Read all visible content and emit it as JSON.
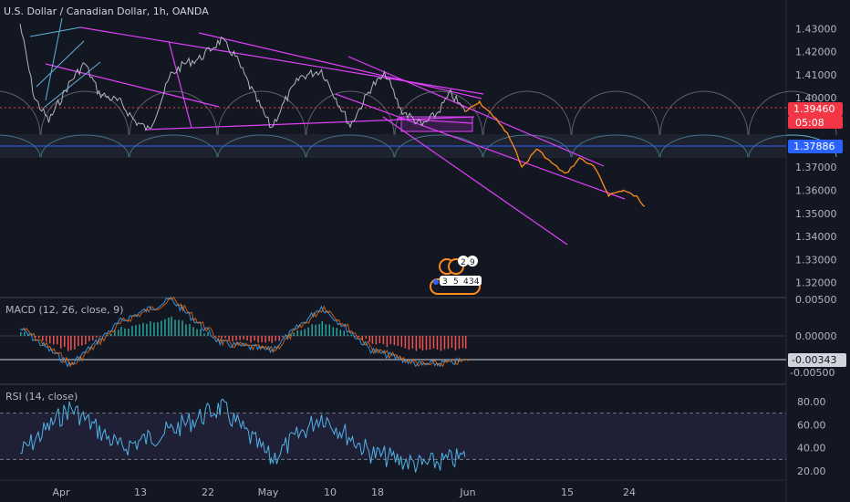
{
  "header": {
    "symbol_title": "U.S. Dollar / Canadian Dollar, 1h, OANDA"
  },
  "colors": {
    "background": "#131722",
    "price": "#b2b5be",
    "magenta": "#e040fb",
    "forecast": "#ff8c1a",
    "cyan": "#5fb3d9",
    "white_line": "#d1d4dc",
    "red_tag": "#f23645",
    "blue_tag": "#2962ff",
    "macd": "#2196f3",
    "signal": "#ff6d00",
    "hist_pos": "#26a69a",
    "hist_neg": "#ef5350",
    "rsi": "#4fb3e8",
    "rsi_band": "#7e57c2"
  },
  "price_axis": {
    "ticks": [
      "1.43000",
      "1.42000",
      "1.41000",
      "1.40000",
      "1.39000",
      "1.38000",
      "1.37000",
      "1.36000",
      "1.35000",
      "1.34000",
      "1.33000",
      "1.32000"
    ],
    "tick_values": [
      1.43,
      1.42,
      1.41,
      1.4,
      1.39,
      1.38,
      1.37,
      1.36,
      1.35,
      1.34,
      1.33,
      1.32
    ],
    "current_price": "1.39460",
    "countdown": "05:08",
    "level_price": "1.37886"
  },
  "macd_panel": {
    "title": "MACD (12, 26, close, 9)",
    "ticks": [
      "0.00500",
      "0.00000",
      "-0.00500"
    ],
    "current_value": "-0.00343"
  },
  "rsi_panel": {
    "title": "RSI (14, close)",
    "ticks": [
      "80.00",
      "60.00",
      "40.00",
      "20.00"
    ],
    "upper_band": 70,
    "lower_band": 30
  },
  "time_axis": {
    "labels": [
      "Apr",
      "13",
      "22",
      "May",
      "10",
      "18",
      "Jun",
      "15",
      "24"
    ]
  },
  "event_badges": {
    "top": [
      "2",
      "9"
    ],
    "bottom": [
      "3",
      "5",
      "4",
      "34"
    ]
  },
  "chart_data": {
    "type": "line",
    "xlabel": "",
    "ylabel": "",
    "ylim": [
      1.315,
      1.436
    ],
    "price_series": {
      "x": [
        "Mar 25",
        "Mar 27",
        "Mar 29",
        "Apr 1",
        "Apr 3",
        "Apr 5",
        "Apr 8",
        "Apr 10",
        "Apr 12",
        "Apr 15",
        "Apr 17",
        "Apr 19",
        "Apr 22",
        "Apr 24",
        "Apr 26",
        "Apr 29",
        "May 1",
        "May 3",
        "May 6",
        "May 8",
        "May 10",
        "May 13",
        "May 15",
        "May 17",
        "May 20",
        "May 22",
        "May 24",
        "May 26"
      ],
      "y": [
        1.432,
        1.4,
        1.39,
        1.407,
        1.415,
        1.402,
        1.398,
        1.39,
        1.386,
        1.41,
        1.415,
        1.417,
        1.425,
        1.418,
        1.405,
        1.387,
        1.399,
        1.409,
        1.412,
        1.4,
        1.388,
        1.405,
        1.41,
        1.395,
        1.388,
        1.393,
        1.402,
        1.394
      ]
    },
    "forecast_series": {
      "x": [
        "May 26",
        "May 28",
        "May 30",
        "Jun 1",
        "Jun 3",
        "Jun 5",
        "Jun 7",
        "Jun 9",
        "Jun 11",
        "Jun 13",
        "Jun 15",
        "Jun 17",
        "Jun 19",
        "Jun 20"
      ],
      "y": [
        1.394,
        1.398,
        1.392,
        1.384,
        1.37,
        1.378,
        1.372,
        1.367,
        1.374,
        1.37,
        1.358,
        1.36,
        1.357,
        1.353
      ]
    },
    "macd": {
      "x": [
        "Mar 25",
        "Apr 1",
        "Apr 8",
        "Apr 15",
        "Apr 22",
        "Apr 29",
        "May 6",
        "May 13",
        "May 20",
        "May 26"
      ],
      "y": [
        0.001,
        -0.004,
        0.002,
        0.005,
        -0.001,
        -0.002,
        0.004,
        -0.002,
        -0.004,
        -0.00343
      ]
    },
    "rsi": {
      "x": [
        "Mar 25",
        "Apr 1",
        "Apr 8",
        "Apr 15",
        "Apr 22",
        "Apr 29",
        "May 6",
        "May 13",
        "May 20",
        "May 26"
      ],
      "y": [
        35,
        75,
        40,
        55,
        75,
        30,
        68,
        35,
        25,
        32
      ]
    }
  }
}
